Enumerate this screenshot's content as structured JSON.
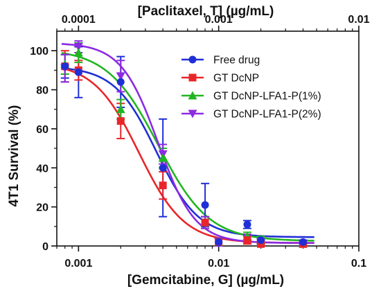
{
  "chart_data": {
    "type": "line",
    "xlabel": "[Gemcitabine, G] (µg/mL)",
    "xlabel_top": "[Paclitaxel, T] (µg/mL)",
    "ylabel": "4T1 Survival (%)",
    "x_scale": "log",
    "xlim": [
      0.0007,
      0.1
    ],
    "x_ticks": [
      0.001,
      0.01,
      0.1
    ],
    "x_tick_labels": [
      "0.001",
      "0.01",
      "0.1"
    ],
    "x_top_ticks": [
      0.0001,
      0.001,
      0.01
    ],
    "x_top_tick_labels": [
      "0.0001",
      "0.001",
      "0.01"
    ],
    "ylim": [
      0,
      110
    ],
    "y_ticks": [
      0,
      20,
      40,
      60,
      80,
      100
    ],
    "y_tick_labels": [
      "0",
      "20",
      "40",
      "60",
      "80",
      "100"
    ],
    "legend_position": "top-right",
    "grid": false,
    "series": [
      {
        "name": "Free drug",
        "color": "#1f2fd6",
        "marker": "circle",
        "x": [
          0.0008,
          0.001,
          0.002,
          0.004,
          0.008,
          0.01,
          0.016,
          0.02,
          0.04
        ],
        "y": [
          92,
          89,
          84,
          40,
          21,
          2,
          11,
          3,
          2
        ],
        "err": [
          6,
          13,
          13,
          25,
          11,
          2,
          2,
          2,
          1
        ],
        "fit": {
          "top": 92,
          "bottom": 4.5,
          "ec50": 0.0036,
          "hill": 2.9
        }
      },
      {
        "name": "GT DcNP",
        "color": "#e8262a",
        "marker": "square",
        "x": [
          0.0008,
          0.001,
          0.002,
          0.004,
          0.008,
          0.01,
          0.016,
          0.02,
          0.04
        ],
        "y": [
          92,
          90,
          64,
          31,
          12,
          2,
          3,
          1,
          1
        ],
        "err": [
          8,
          5,
          9,
          7,
          3,
          2,
          2,
          1,
          1
        ],
        "fit": {
          "top": 94,
          "bottom": 1.5,
          "ec50": 0.0027,
          "hill": 2.7
        }
      },
      {
        "name": "GT DcNP-LFA1-P(1%)",
        "color": "#22b522",
        "marker": "triangle",
        "x": [
          0.0008,
          0.001,
          0.002,
          0.004,
          0.008,
          0.01,
          0.016,
          0.02,
          0.04
        ],
        "y": [
          93,
          99,
          70,
          45,
          12,
          2,
          5,
          3,
          1
        ],
        "err": [
          5,
          5,
          5,
          5,
          3,
          2,
          2,
          2,
          1
        ],
        "fit": {
          "top": 101,
          "bottom": 2.5,
          "ec50": 0.0037,
          "hill": 2.4
        }
      },
      {
        "name": "GT DcNP-LFA1-P(2%)",
        "color": "#8b2be2",
        "marker": "triangle-down",
        "x": [
          0.0008,
          0.001,
          0.002,
          0.004,
          0.008,
          0.01,
          0.016,
          0.02,
          0.04
        ],
        "y": [
          91,
          102,
          87,
          47,
          12,
          2,
          4,
          2,
          1
        ],
        "err": [
          7,
          3,
          8,
          5,
          3,
          2,
          2,
          1,
          1
        ],
        "fit": {
          "top": 104,
          "bottom": 1.5,
          "ec50": 0.0037,
          "hill": 3.3
        }
      }
    ]
  }
}
